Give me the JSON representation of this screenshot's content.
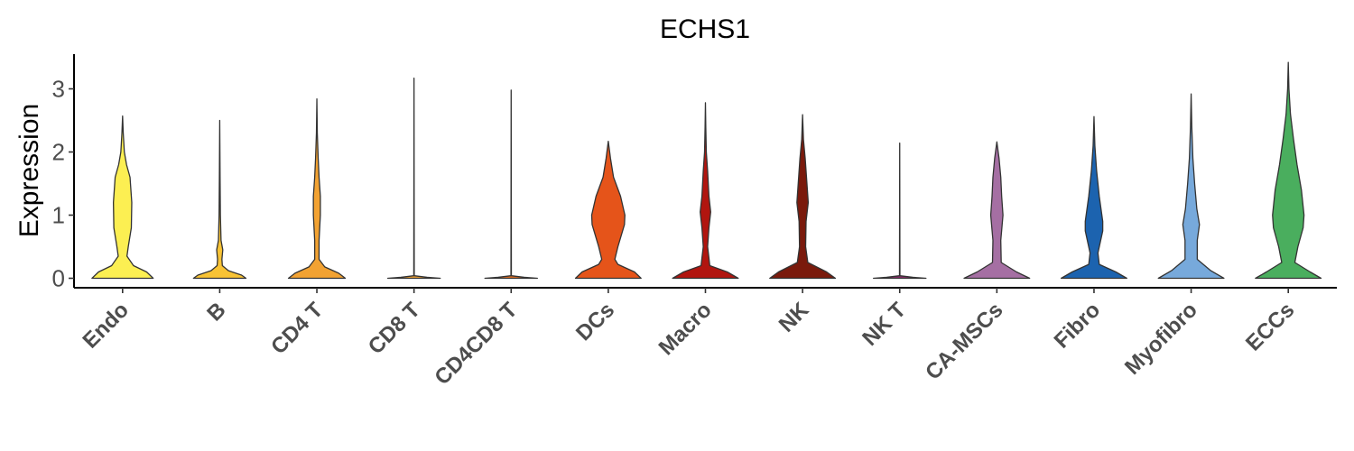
{
  "chart_data": {
    "type": "violin",
    "title": "ECHS1",
    "xlabel": "",
    "ylabel": "Expression",
    "ylim": [
      -0.15,
      3.55
    ],
    "yticks": [
      0,
      1,
      2,
      3
    ],
    "grid": false,
    "legend": "none",
    "categories": [
      "Endo",
      "B",
      "CD4 T",
      "CD8 T",
      "CD4CD8 T",
      "DCs",
      "Macro",
      "NK",
      "NK T",
      "CA-MSCs",
      "Fibro",
      "Myofibro",
      "ECCs"
    ],
    "colors": [
      "#FCEF52",
      "#F8C335",
      "#F2A232",
      "#F2A232",
      "#E8701F",
      "#E5541A",
      "#B1150F",
      "#7A1A0C",
      "#8C2C6B",
      "#A56FA3",
      "#1C63AF",
      "#77A9DB",
      "#4AAE5E"
    ],
    "max_values": [
      2.57,
      2.5,
      2.84,
      3.17,
      2.98,
      2.17,
      2.78,
      2.59,
      2.14,
      2.16,
      2.56,
      2.92,
      3.42
    ],
    "distributions": [
      [
        [
          0,
          0.7
        ],
        [
          0.1,
          0.55
        ],
        [
          0.2,
          0.25
        ],
        [
          0.35,
          0.1
        ],
        [
          0.5,
          0.13
        ],
        [
          0.8,
          0.2
        ],
        [
          1.2,
          0.21
        ],
        [
          1.6,
          0.17
        ],
        [
          1.8,
          0.09
        ],
        [
          2.0,
          0.04
        ],
        [
          2.3,
          0.015
        ],
        [
          2.57,
          0
        ]
      ],
      [
        [
          0,
          0.6
        ],
        [
          0.05,
          0.5
        ],
        [
          0.12,
          0.2
        ],
        [
          0.2,
          0.06
        ],
        [
          0.3,
          0.05
        ],
        [
          0.45,
          0.07
        ],
        [
          0.6,
          0.03
        ],
        [
          1.0,
          0.015
        ],
        [
          1.6,
          0.008
        ],
        [
          2.5,
          0
        ]
      ],
      [
        [
          0,
          0.65
        ],
        [
          0.08,
          0.5
        ],
        [
          0.18,
          0.18
        ],
        [
          0.3,
          0.05
        ],
        [
          0.6,
          0.05
        ],
        [
          1.0,
          0.08
        ],
        [
          1.3,
          0.08
        ],
        [
          1.6,
          0.05
        ],
        [
          1.9,
          0.03
        ],
        [
          2.3,
          0.01
        ],
        [
          2.84,
          0
        ]
      ],
      [
        [
          0,
          0.6
        ],
        [
          0.015,
          0.3
        ],
        [
          0.04,
          0.005
        ],
        [
          3.17,
          0
        ]
      ],
      [
        [
          0,
          0.6
        ],
        [
          0.015,
          0.3
        ],
        [
          0.04,
          0.005
        ],
        [
          2.98,
          0
        ]
      ],
      [
        [
          0,
          0.75
        ],
        [
          0.1,
          0.6
        ],
        [
          0.22,
          0.22
        ],
        [
          0.3,
          0.15
        ],
        [
          0.5,
          0.22
        ],
        [
          0.85,
          0.37
        ],
        [
          1.0,
          0.38
        ],
        [
          1.3,
          0.28
        ],
        [
          1.6,
          0.12
        ],
        [
          1.9,
          0.05
        ],
        [
          2.17,
          0
        ]
      ],
      [
        [
          0,
          0.75
        ],
        [
          0.1,
          0.5
        ],
        [
          0.2,
          0.1
        ],
        [
          0.5,
          0.05
        ],
        [
          0.8,
          0.08
        ],
        [
          1.05,
          0.12
        ],
        [
          1.3,
          0.08
        ],
        [
          1.7,
          0.05
        ],
        [
          2.0,
          0.02
        ],
        [
          2.4,
          0.008
        ],
        [
          2.78,
          0
        ]
      ],
      [
        [
          0,
          0.75
        ],
        [
          0.1,
          0.55
        ],
        [
          0.25,
          0.12
        ],
        [
          0.5,
          0.07
        ],
        [
          0.9,
          0.08
        ],
        [
          1.2,
          0.13
        ],
        [
          1.5,
          0.1
        ],
        [
          1.9,
          0.06
        ],
        [
          2.2,
          0.02
        ],
        [
          2.59,
          0
        ]
      ],
      [
        [
          0,
          0.6
        ],
        [
          0.015,
          0.3
        ],
        [
          0.04,
          0.005
        ],
        [
          2.14,
          0
        ]
      ],
      [
        [
          0,
          0.75
        ],
        [
          0.1,
          0.45
        ],
        [
          0.25,
          0.1
        ],
        [
          0.6,
          0.09
        ],
        [
          1.0,
          0.14
        ],
        [
          1.3,
          0.11
        ],
        [
          1.6,
          0.09
        ],
        [
          1.9,
          0.05
        ],
        [
          2.16,
          0
        ]
      ],
      [
        [
          0,
          0.75
        ],
        [
          0.1,
          0.5
        ],
        [
          0.22,
          0.12
        ],
        [
          0.4,
          0.09
        ],
        [
          0.75,
          0.2
        ],
        [
          0.9,
          0.2
        ],
        [
          1.3,
          0.12
        ],
        [
          1.7,
          0.06
        ],
        [
          2.1,
          0.02
        ],
        [
          2.56,
          0
        ]
      ],
      [
        [
          0,
          0.75
        ],
        [
          0.12,
          0.45
        ],
        [
          0.3,
          0.14
        ],
        [
          0.6,
          0.14
        ],
        [
          0.85,
          0.19
        ],
        [
          1.1,
          0.13
        ],
        [
          1.5,
          0.08
        ],
        [
          1.9,
          0.04
        ],
        [
          2.4,
          0.015
        ],
        [
          2.92,
          0
        ]
      ],
      [
        [
          0,
          0.75
        ],
        [
          0.1,
          0.5
        ],
        [
          0.25,
          0.15
        ],
        [
          0.5,
          0.22
        ],
        [
          0.8,
          0.34
        ],
        [
          1.0,
          0.36
        ],
        [
          1.4,
          0.3
        ],
        [
          1.8,
          0.2
        ],
        [
          2.2,
          0.12
        ],
        [
          2.6,
          0.05
        ],
        [
          3.0,
          0.015
        ],
        [
          3.42,
          0
        ]
      ]
    ]
  }
}
